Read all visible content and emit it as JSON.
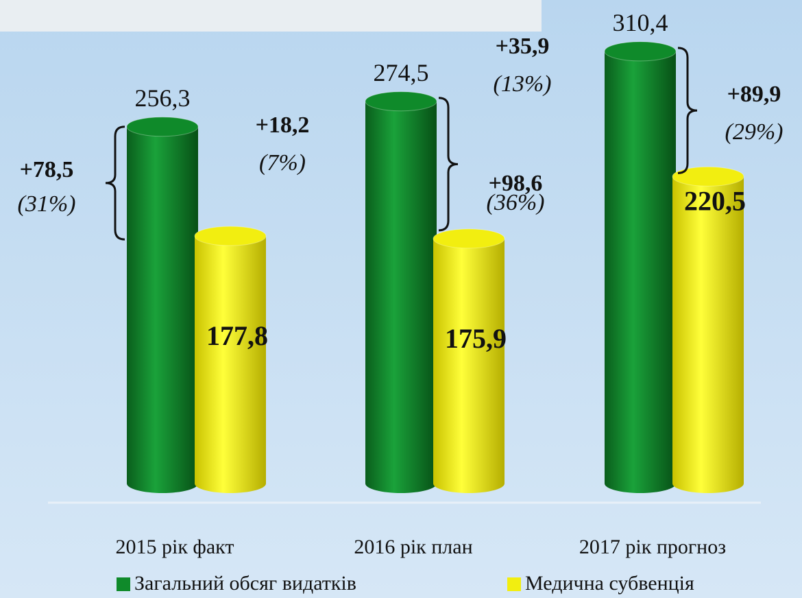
{
  "chart_data": {
    "type": "bar",
    "categories": [
      "2015 рік факт",
      "2016 рік план",
      "2017 рік прогноз"
    ],
    "series": [
      {
        "name": "Загальний обсяг видатків",
        "color": "#0f8a2a",
        "values": [
          256.3,
          274.5,
          310.4
        ],
        "value_labels": [
          "256,3",
          "274,5",
          "310,4"
        ]
      },
      {
        "name": "Медична субвенція",
        "color": "#f2ee10",
        "values": [
          177.8,
          175.9,
          220.5
        ],
        "value_labels": [
          "177,8",
          "175,9",
          "220,5"
        ]
      }
    ],
    "annotations": [
      {
        "text": "+78,5",
        "note": "(31%)"
      },
      {
        "text": "+18,2",
        "note": "(7%)"
      },
      {
        "text": "+35,9",
        "note": "(13%)"
      },
      {
        "text": "+98,6",
        "note": "(36%)"
      },
      {
        "text": "+89,9",
        "note": "(29%)"
      }
    ]
  }
}
